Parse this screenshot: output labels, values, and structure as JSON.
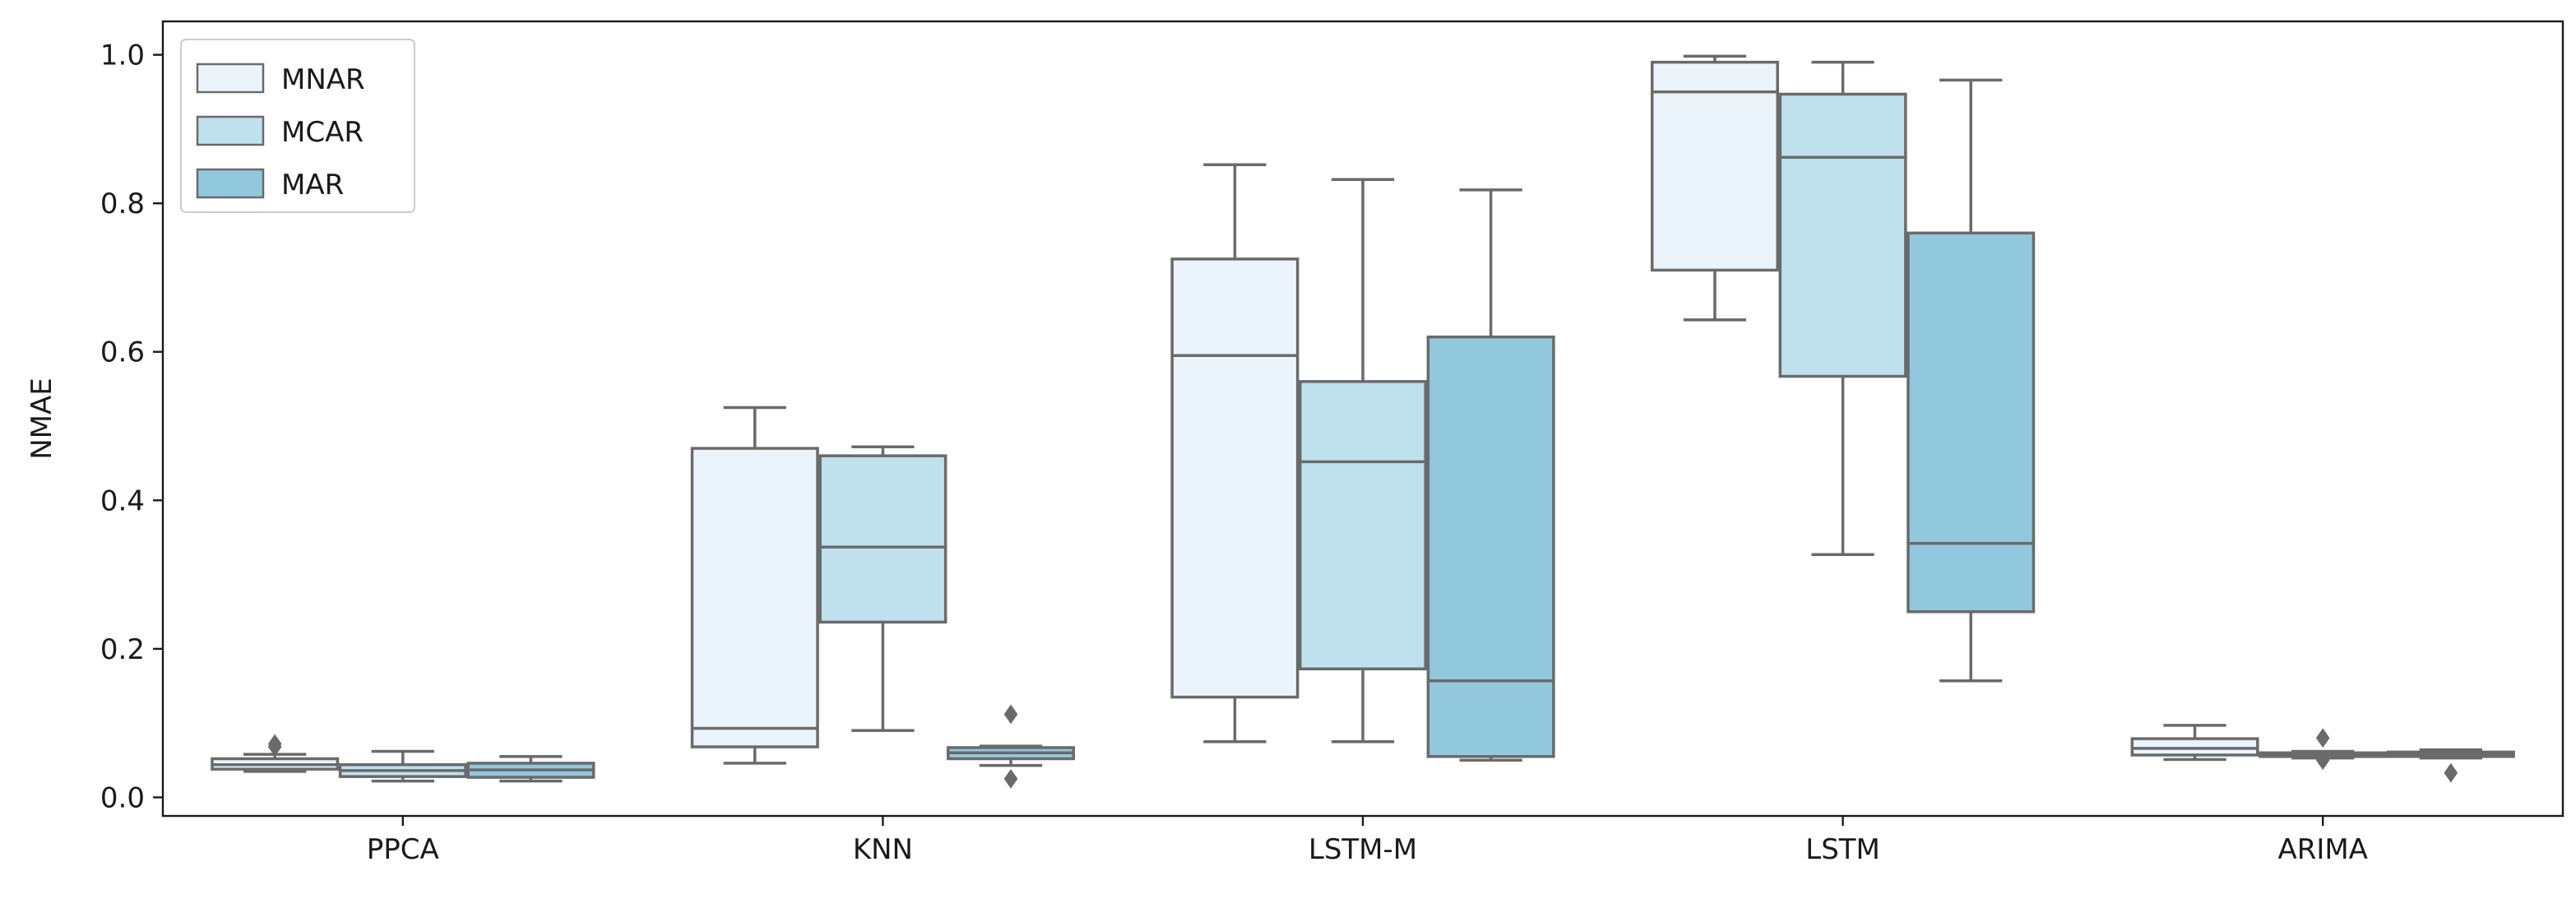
{
  "chart_data": {
    "type": "boxplot",
    "title": "",
    "xlabel": "",
    "ylabel": "NMAE",
    "ylim": [
      -0.025,
      1.045
    ],
    "yticks": [
      0.0,
      0.2,
      0.4,
      0.6,
      0.8,
      1.0
    ],
    "ytick_labels": [
      "0.0",
      "0.2",
      "0.4",
      "0.6",
      "0.8",
      "1.0"
    ],
    "grid": false,
    "legend_position": "top-left",
    "categories": [
      "PPCA",
      "KNN",
      "LSTM-M",
      "LSTM",
      "ARIMA"
    ],
    "series": [
      {
        "name": "MNAR",
        "color": "#ebf4fa",
        "boxes": [
          {
            "whisker_low": 0.035,
            "q1": 0.038,
            "median": 0.044,
            "q3": 0.052,
            "whisker_high": 0.058,
            "outliers": [
              0.072,
              0.068
            ]
          },
          {
            "whisker_low": 0.046,
            "q1": 0.068,
            "median": 0.093,
            "q3": 0.47,
            "whisker_high": 0.525,
            "outliers": []
          },
          {
            "whisker_low": 0.075,
            "q1": 0.135,
            "median": 0.595,
            "q3": 0.725,
            "whisker_high": 0.852,
            "outliers": []
          },
          {
            "whisker_low": 0.643,
            "q1": 0.71,
            "median": 0.95,
            "q3": 0.99,
            "whisker_high": 0.998,
            "outliers": []
          },
          {
            "whisker_low": 0.051,
            "q1": 0.057,
            "median": 0.066,
            "q3": 0.079,
            "whisker_high": 0.097,
            "outliers": []
          }
        ]
      },
      {
        "name": "MCAR",
        "color": "#bfe0ed",
        "boxes": [
          {
            "whisker_low": 0.022,
            "q1": 0.028,
            "median": 0.036,
            "q3": 0.044,
            "whisker_high": 0.062,
            "outliers": []
          },
          {
            "whisker_low": 0.09,
            "q1": 0.236,
            "median": 0.337,
            "q3": 0.46,
            "whisker_high": 0.472,
            "outliers": []
          },
          {
            "whisker_low": 0.075,
            "q1": 0.173,
            "median": 0.452,
            "q3": 0.56,
            "whisker_high": 0.832,
            "outliers": []
          },
          {
            "whisker_low": 0.327,
            "q1": 0.567,
            "median": 0.862,
            "q3": 0.947,
            "whisker_high": 0.99,
            "outliers": []
          },
          {
            "whisker_low": 0.053,
            "q1": 0.055,
            "median": 0.058,
            "q3": 0.06,
            "whisker_high": 0.062,
            "outliers": [
              0.08,
              0.05
            ]
          }
        ]
      },
      {
        "name": "MAR",
        "color": "#92c8de",
        "boxes": [
          {
            "whisker_low": 0.022,
            "q1": 0.027,
            "median": 0.037,
            "q3": 0.046,
            "whisker_high": 0.055,
            "outliers": []
          },
          {
            "whisker_low": 0.043,
            "q1": 0.052,
            "median": 0.06,
            "q3": 0.067,
            "whisker_high": 0.069,
            "outliers": [
              0.112,
              0.025
            ]
          },
          {
            "whisker_low": 0.05,
            "q1": 0.055,
            "median": 0.157,
            "q3": 0.62,
            "whisker_high": 0.818,
            "outliers": []
          },
          {
            "whisker_low": 0.157,
            "q1": 0.25,
            "median": 0.342,
            "q3": 0.76,
            "whisker_high": 0.966,
            "outliers": []
          },
          {
            "whisker_low": 0.053,
            "q1": 0.055,
            "median": 0.058,
            "q3": 0.061,
            "whisker_high": 0.064,
            "outliers": [
              0.033
            ]
          }
        ]
      }
    ]
  }
}
